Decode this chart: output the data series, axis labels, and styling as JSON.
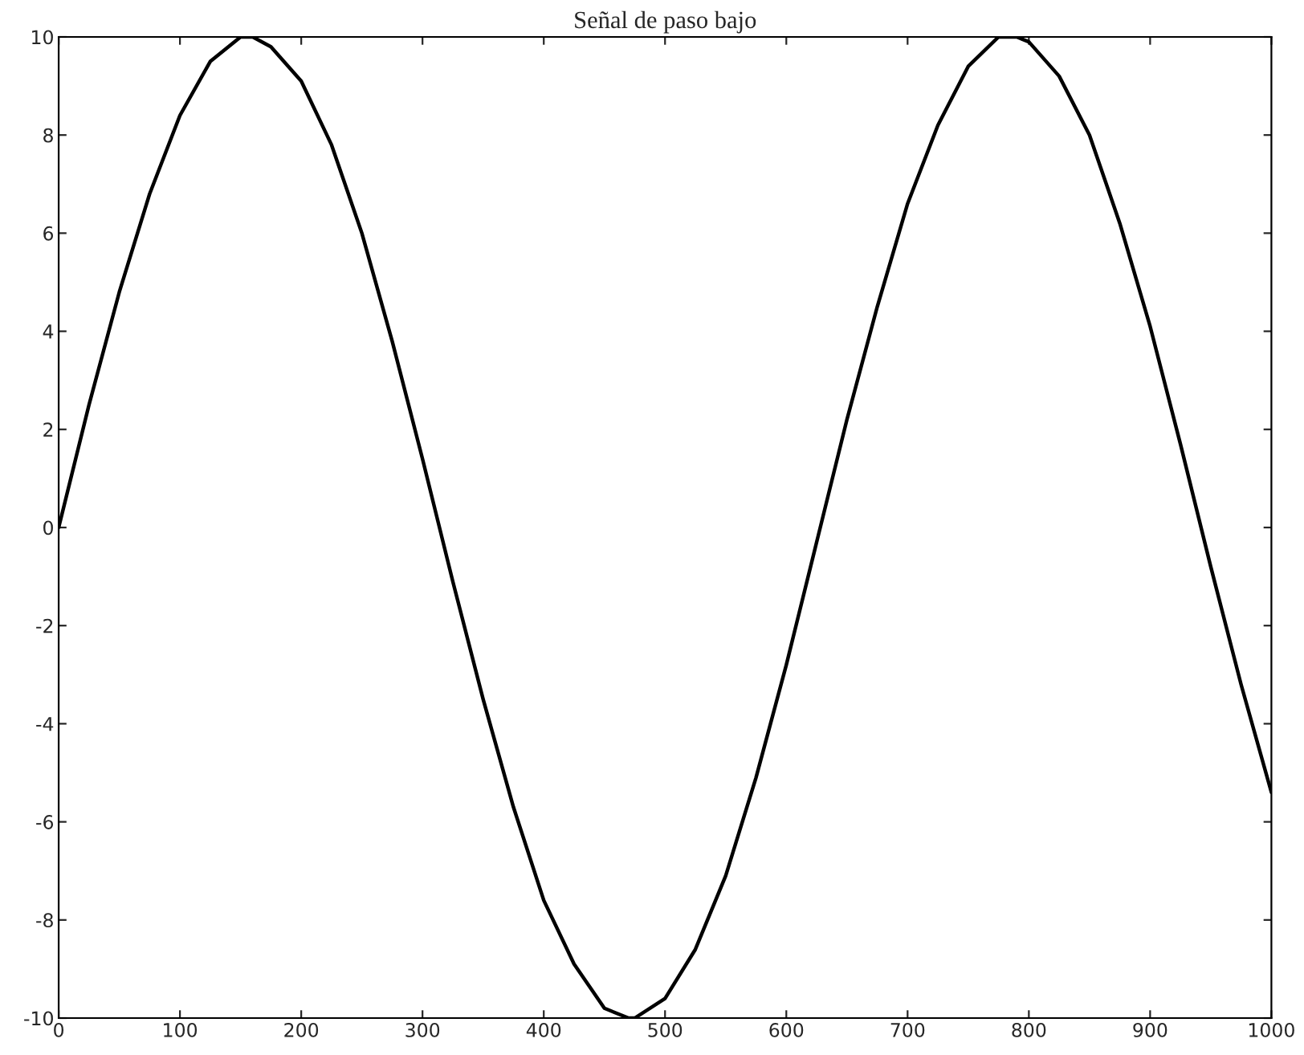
{
  "chart_data": {
    "type": "line",
    "title": "Señal de paso bajo",
    "x": [
      0,
      25,
      50,
      75,
      100,
      125,
      150,
      160,
      175,
      200,
      225,
      250,
      275,
      300,
      325,
      350,
      375,
      400,
      425,
      450,
      470,
      475,
      500,
      525,
      550,
      575,
      600,
      625,
      650,
      675,
      700,
      725,
      750,
      775,
      790,
      800,
      825,
      850,
      875,
      900,
      925,
      950,
      975,
      1000
    ],
    "series": [
      {
        "color": "#000000",
        "values": [
          0,
          2.5,
          4.8,
          6.8,
          8.4,
          9.5,
          10.0,
          10.0,
          9.8,
          9.1,
          7.8,
          6.0,
          3.8,
          1.4,
          -1.1,
          -3.5,
          -5.7,
          -7.6,
          -8.9,
          -9.8,
          -10.0,
          -10.0,
          -9.6,
          -8.6,
          -7.1,
          -5.1,
          -2.8,
          -0.3,
          2.2,
          4.5,
          6.6,
          8.2,
          9.4,
          10.0,
          10.0,
          9.9,
          9.2,
          8.0,
          6.2,
          4.1,
          1.7,
          -0.8,
          -3.2,
          -5.4
        ]
      }
    ],
    "xlim": [
      0,
      1000
    ],
    "ylim": [
      -10,
      10
    ],
    "xticks": [
      0,
      100,
      200,
      300,
      400,
      500,
      600,
      700,
      800,
      900,
      1000
    ],
    "yticks": [
      -10,
      -8,
      -6,
      -4,
      -2,
      0,
      2,
      4,
      6,
      8,
      10
    ],
    "grid": false,
    "legend": false,
    "marker": "none",
    "line_style": "solid"
  }
}
